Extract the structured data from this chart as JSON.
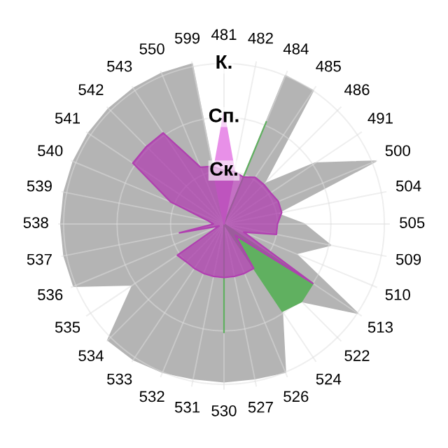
{
  "chart_data": {
    "type": "radar",
    "categories": [
      "481",
      "482",
      "484",
      "485",
      "486",
      "491",
      "500",
      "504",
      "505",
      "509",
      "510",
      "513",
      "522",
      "524",
      "526",
      "527",
      "530",
      "531",
      "532",
      "533",
      "534",
      "535",
      "536",
      "537",
      "538",
      "539",
      "540",
      "541",
      "542",
      "543",
      "550",
      "599"
    ],
    "ylim": [
      0,
      3.1
    ],
    "yticks": [
      {
        "value": 1,
        "label": "Ск."
      },
      {
        "value": 2,
        "label": "Сп."
      },
      {
        "value": 3,
        "label": "К."
      }
    ],
    "grid": true,
    "series": [
      {
        "color": "#b4b4b4",
        "values": [
          0,
          0,
          3.0,
          3.0,
          1.05,
          2.05,
          3.07,
          1.0,
          1.5,
          2.03,
          1.45,
          3.0,
          2.05,
          1.96,
          3.0,
          2.95,
          2.95,
          2.95,
          3.0,
          3.05,
          3.07,
          2.05,
          3.04,
          3.05,
          3.05,
          3.05,
          3.05,
          3.05,
          3.05,
          3.05,
          3.05,
          3.05
        ]
      },
      {
        "color": "#60b060",
        "values": [
          0,
          0,
          2.07,
          0,
          0,
          0,
          0,
          0,
          0,
          0,
          0,
          2.0,
          2.05,
          1.96,
          0,
          0,
          2.03,
          0,
          0,
          0,
          0,
          0,
          0,
          0,
          0,
          0,
          0,
          0,
          0,
          0,
          0,
          0
        ]
      },
      {
        "color": "#e890e8",
        "values": [
          2.07,
          1.0,
          0,
          0,
          0,
          0,
          0,
          0,
          0,
          0,
          0,
          0,
          0,
          0,
          0,
          0,
          0,
          0,
          0,
          0,
          0,
          0,
          0,
          0,
          0,
          0,
          0,
          0,
          0,
          0,
          0,
          1.0
        ]
      },
      {
        "color": "#b040b0",
        "values": [
          1.0,
          1.0,
          0.95,
          1.05,
          1.05,
          1.05,
          1.1,
          1.1,
          1.0,
          1.0,
          0.4,
          2.0,
          0.3,
          1.0,
          1.0,
          1.0,
          1.0,
          1.0,
          1.0,
          1.0,
          1.0,
          1.05,
          0.1,
          0.85,
          0.2,
          0.3,
          1.08,
          2.05,
          2.05,
          2.05,
          1.15,
          1.1
        ]
      }
    ]
  }
}
